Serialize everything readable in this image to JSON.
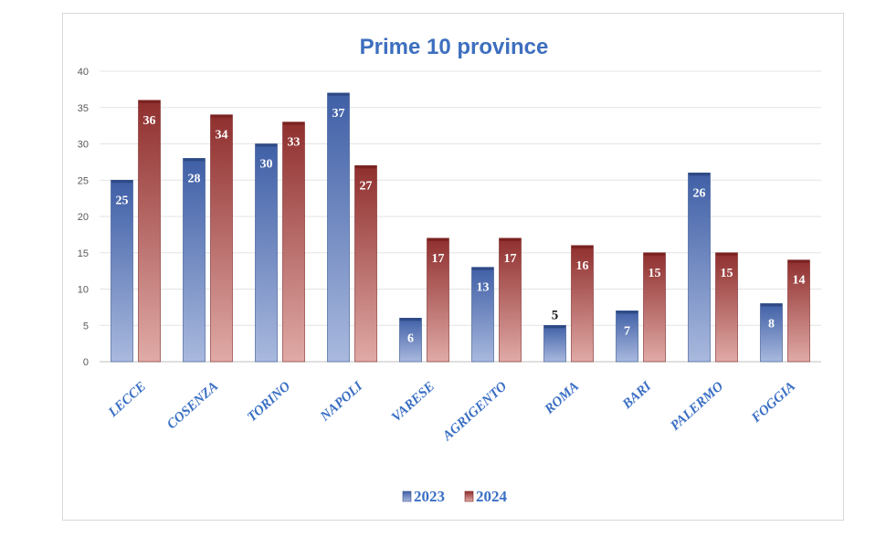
{
  "chart_data": {
    "type": "bar",
    "title": "Prime 10 province",
    "xlabel": "",
    "ylabel": "",
    "ylim": [
      0,
      40
    ],
    "yticks": [
      0,
      5,
      10,
      15,
      20,
      25,
      30,
      35,
      40
    ],
    "grid": true,
    "legend_position": "bottom",
    "categories": [
      "LECCE",
      "COSENZA",
      "TORINO",
      "NAPOLI",
      "VARESE",
      "AGRIGENTO",
      "ROMA",
      "BARI",
      "PALERMO",
      "FOGGIA"
    ],
    "series": [
      {
        "name": "2023",
        "values": [
          25,
          28,
          30,
          37,
          6,
          13,
          5,
          7,
          26,
          8
        ],
        "color": "#4e6fb0"
      },
      {
        "name": "2024",
        "values": [
          36,
          34,
          33,
          27,
          17,
          17,
          16,
          15,
          15,
          14
        ],
        "color": "#9e3b3a"
      }
    ]
  }
}
